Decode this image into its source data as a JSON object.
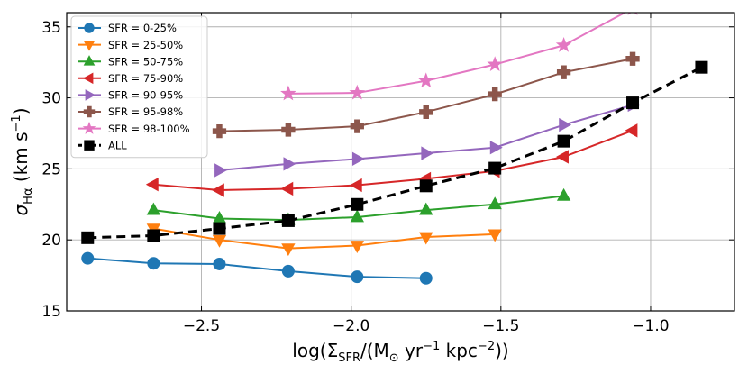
{
  "chart_data": {
    "type": "line",
    "xlabel": "log(Σ_SFR/(M_⊙ yr^-1 kpc^-2))",
    "ylabel": "σ_Hα (km s^-1)",
    "xlim": [
      -2.95,
      -0.72
    ],
    "ylim": [
      15,
      36
    ],
    "xticks": [
      -2.5,
      -2.0,
      -1.5,
      -1.0
    ],
    "xtick_labels": [
      "−2.5",
      "−2.0",
      "−1.5",
      "−1.0"
    ],
    "yticks": [
      15,
      20,
      25,
      30,
      35
    ],
    "ytick_labels": [
      "15",
      "20",
      "25",
      "30",
      "35"
    ],
    "grid": true,
    "legend_position": "top-left",
    "series": [
      {
        "name": "SFR = 0-25%",
        "color": "#1f77b4",
        "marker": "circle",
        "line": "solid",
        "x": [
          -2.88,
          -2.66,
          -2.44,
          -2.21,
          -1.98,
          -1.75
        ],
        "y": [
          18.7,
          18.35,
          18.3,
          17.8,
          17.4,
          17.3
        ]
      },
      {
        "name": "SFR = 25-50%",
        "color": "#ff7f0e",
        "marker": "triangle-down",
        "line": "solid",
        "x": [
          -2.66,
          -2.44,
          -2.21,
          -1.98,
          -1.75,
          -1.52
        ],
        "y": [
          20.8,
          20.0,
          19.4,
          19.6,
          20.2,
          20.4
        ]
      },
      {
        "name": "SFR = 50-75%",
        "color": "#2ca02c",
        "marker": "triangle-up",
        "line": "solid",
        "x": [
          -2.66,
          -2.44,
          -2.21,
          -1.98,
          -1.75,
          -1.52,
          -1.29
        ],
        "y": [
          22.1,
          21.5,
          21.4,
          21.6,
          22.1,
          22.5,
          23.1
        ]
      },
      {
        "name": "SFR = 75-90%",
        "color": "#d62728",
        "marker": "triangle-left",
        "line": "solid",
        "x": [
          -2.66,
          -2.44,
          -2.21,
          -1.98,
          -1.75,
          -1.52,
          -1.29,
          -1.06
        ],
        "y": [
          23.9,
          23.5,
          23.6,
          23.85,
          24.3,
          24.85,
          25.85,
          27.7
        ]
      },
      {
        "name": "SFR = 90-95%",
        "color": "#9467bd",
        "marker": "triangle-right",
        "line": "solid",
        "x": [
          -2.44,
          -2.21,
          -1.98,
          -1.75,
          -1.52,
          -1.29,
          -1.06
        ],
        "y": [
          24.9,
          25.35,
          25.7,
          26.1,
          26.5,
          28.1,
          29.5
        ]
      },
      {
        "name": "SFR = 95-98%",
        "color": "#8c564b",
        "marker": "plus",
        "line": "solid",
        "x": [
          -2.44,
          -2.21,
          -1.98,
          -1.75,
          -1.52,
          -1.29,
          -1.06
        ],
        "y": [
          27.65,
          27.75,
          28.0,
          29.0,
          30.25,
          31.8,
          32.75
        ]
      },
      {
        "name": "SFR = 98-100%",
        "color": "#e377c2",
        "marker": "star",
        "line": "solid",
        "x": [
          -2.21,
          -1.98,
          -1.75,
          -1.52,
          -1.29,
          -1.06
        ],
        "y": [
          30.3,
          30.35,
          31.2,
          32.35,
          33.7,
          36.3
        ]
      },
      {
        "name": "ALL",
        "color": "#000000",
        "marker": "square",
        "line": "dashed",
        "x": [
          -2.88,
          -2.66,
          -2.44,
          -2.21,
          -1.98,
          -1.75,
          -1.52,
          -1.29,
          -1.06,
          -0.83
        ],
        "y": [
          20.15,
          20.3,
          20.8,
          21.35,
          22.5,
          23.8,
          25.05,
          26.95,
          29.65,
          32.15
        ]
      }
    ]
  }
}
